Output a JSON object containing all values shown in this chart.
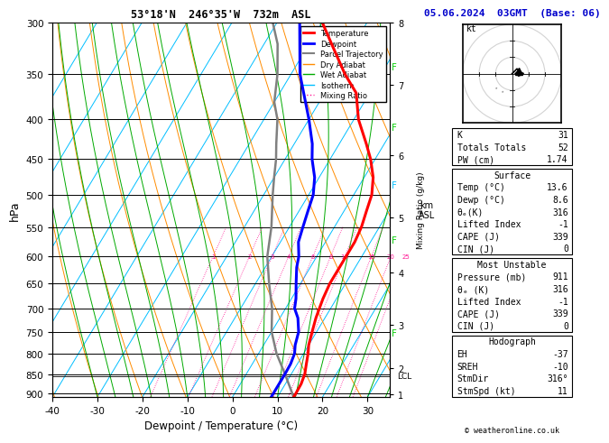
{
  "title_left": "53°18'N  246°35'W  732m  ASL",
  "title_right": "05.06.2024  03GMT  (Base: 06)",
  "xlabel": "Dewpoint / Temperature (°C)",
  "ylabel_left": "hPa",
  "p_min": 300,
  "p_max": 910,
  "p_ticks": [
    300,
    350,
    400,
    450,
    500,
    550,
    600,
    650,
    700,
    750,
    800,
    850,
    900
  ],
  "t_min": -40,
  "t_max": 35,
  "t_ticks": [
    -40,
    -30,
    -20,
    -10,
    0,
    10,
    20,
    30
  ],
  "km_ticks": [
    1,
    2,
    3,
    4,
    5,
    6,
    7,
    8
  ],
  "km_pressures": [
    900,
    820,
    700,
    580,
    475,
    380,
    295,
    235
  ],
  "lcl_pressure": 855,
  "mixing_ratio_values": [
    1,
    2,
    3,
    4,
    6,
    8,
    10,
    15,
    20,
    25
  ],
  "temp_profile_p": [
    300,
    320,
    350,
    370,
    400,
    430,
    450,
    475,
    500,
    525,
    550,
    575,
    600,
    620,
    650,
    680,
    700,
    720,
    750,
    780,
    800,
    825,
    850,
    875,
    900,
    910
  ],
  "temp_profile_t": [
    -30,
    -25,
    -18,
    -13,
    -9,
    -4,
    -1,
    2,
    4,
    5,
    6,
    6.5,
    6.5,
    6.5,
    6.5,
    7,
    7.5,
    8,
    9,
    10,
    11,
    12,
    13,
    13.5,
    13.6,
    13.6
  ],
  "dewp_profile_p": [
    300,
    350,
    400,
    430,
    450,
    475,
    500,
    525,
    550,
    575,
    600,
    620,
    650,
    680,
    700,
    720,
    750,
    780,
    800,
    825,
    850,
    875,
    900,
    910
  ],
  "dewp_profile_t": [
    -35,
    -28,
    -20,
    -16,
    -14,
    -11,
    -9,
    -8,
    -7,
    -6,
    -4,
    -3,
    -1,
    1,
    2,
    4,
    6,
    7,
    8,
    8.5,
    8.6,
    8.6,
    8.6,
    8.6
  ],
  "parcel_profile_p": [
    910,
    850,
    800,
    750,
    700,
    650,
    600,
    550,
    500,
    475,
    450,
    430,
    400,
    380,
    350,
    320,
    300
  ],
  "parcel_profile_t": [
    13.6,
    8.6,
    4,
    0,
    -3,
    -7,
    -11,
    -14,
    -18,
    -20,
    -22,
    -24,
    -27,
    -30,
    -33,
    -37,
    -41
  ],
  "color_temp": "#ff0000",
  "color_dewp": "#0000ff",
  "color_parcel": "#808080",
  "color_dry_adiabat": "#ff8c00",
  "color_wet_adiabat": "#00aa00",
  "color_isotherm": "#00bfff",
  "color_mixing_ratio": "#ff1493",
  "info_K": 31,
  "info_TT": 52,
  "info_PW": 1.74,
  "surf_temp": 13.6,
  "surf_dewp": 8.6,
  "surf_theta_e": 316,
  "surf_li": -1,
  "surf_cape": 339,
  "surf_cin": 0,
  "mu_pressure": 911,
  "mu_theta_e": 316,
  "mu_li": -1,
  "mu_cape": 339,
  "mu_cin": 0,
  "hodo_EH": -37,
  "hodo_SREH": -10,
  "hodo_StmDir": "316°",
  "hodo_StmSpd": 11,
  "skew": 45.0,
  "legend_labels": [
    "Temperature",
    "Dewpoint",
    "Parcel Trajectory",
    "Dry Adiabat",
    "Wet Adiabat",
    "Isotherm",
    "Mixing Ratio"
  ]
}
